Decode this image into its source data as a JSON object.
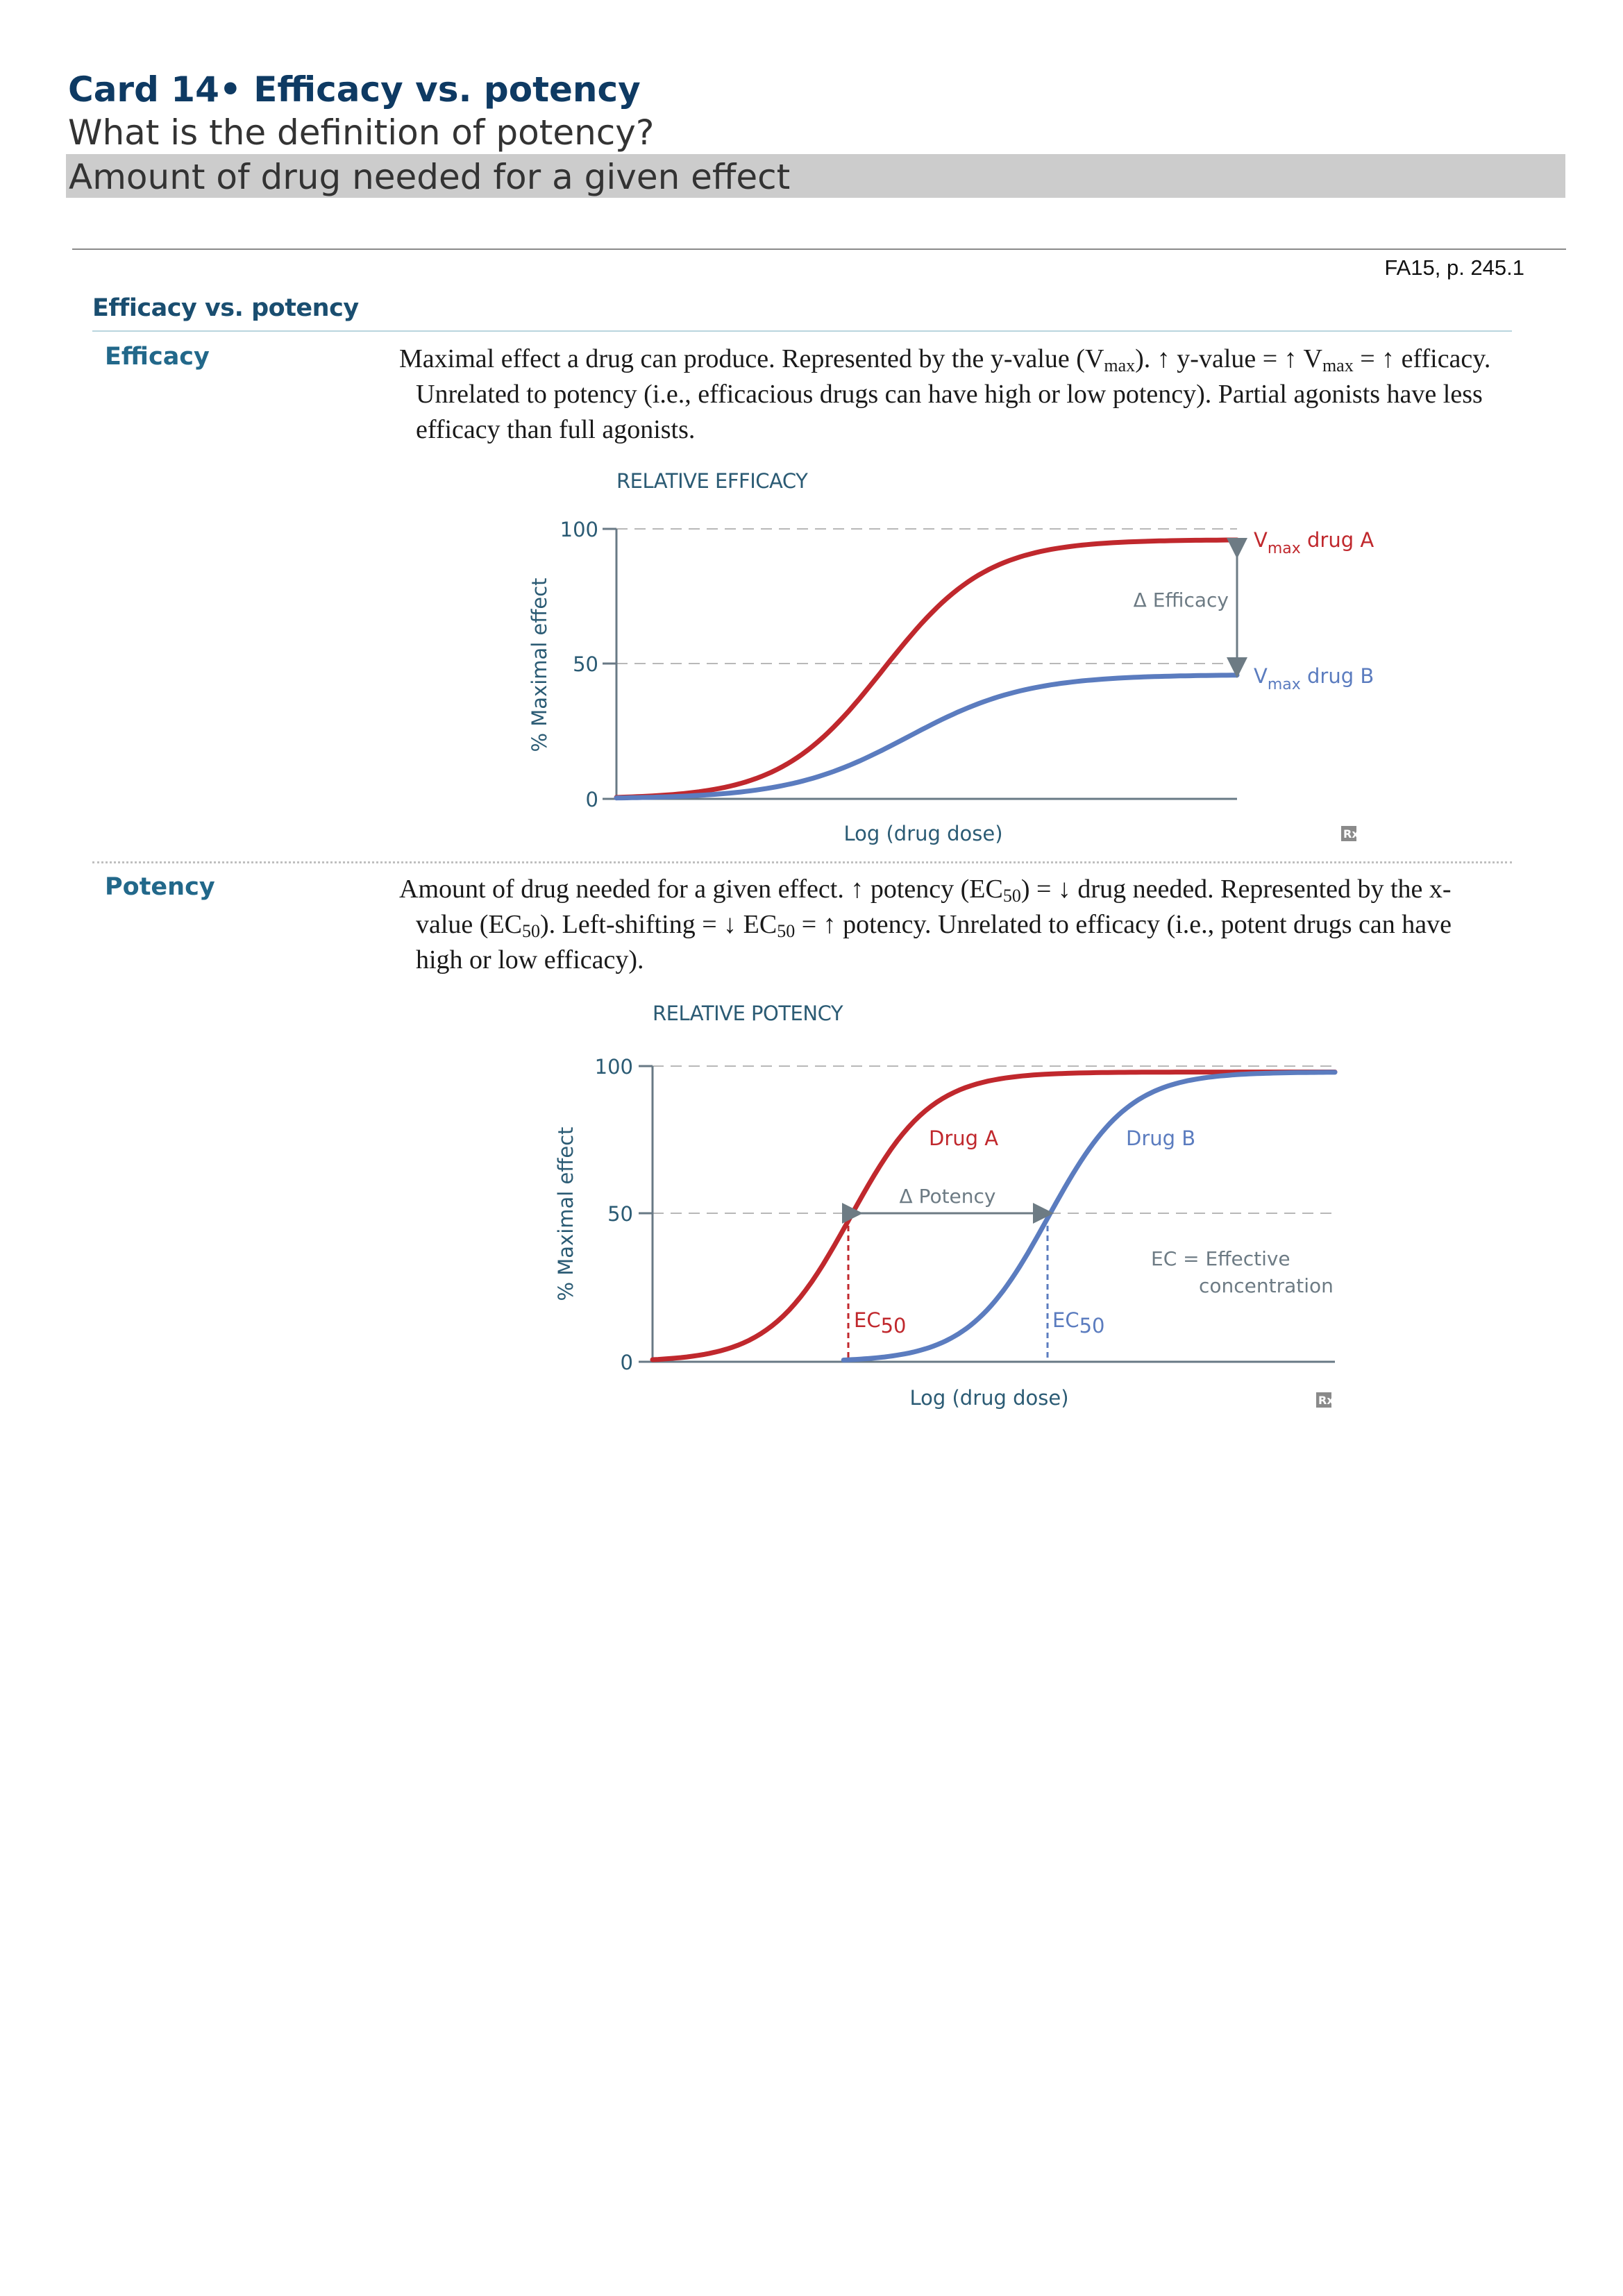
{
  "card": {
    "title": "Card 14• Efficacy vs. potency",
    "question": "What is the definition of potency?",
    "answer": "Amount of drug needed for a given effect"
  },
  "reference": "FA15, p. 245.1",
  "section": {
    "heading": "Efficacy vs. potency"
  },
  "efficacy": {
    "label": "Efficacy",
    "text": {
      "p1": "Maximal effect a drug can produce. Represented by the y-value (V",
      "sub1": "max",
      "p2": "). ↑ y-value = ↑ V",
      "sub2": "max",
      "p3": " = ↑ efficacy. Unrelated to potency (i.e., efficacious drugs can have high or low potency). Partial agonists have less efficacy than full agonists."
    }
  },
  "potency": {
    "label": "Potency",
    "text": {
      "p1": "Amount of drug needed for a given effect. ↑ potency (EC",
      "sub1": "50",
      "p2": ") = ↓ drug needed. Represented by the x-value (EC",
      "sub2": "50",
      "p3": "). Left-shifting = ↓ EC",
      "sub3": "50",
      "p4": " = ↑ potency. Unrelated to efficacy (i.e., potent drugs can have high or low efficacy)."
    }
  },
  "chart_data": [
    {
      "type": "line",
      "title": "RELATIVE EFFICACY",
      "xlabel": "Log (drug dose)",
      "ylabel": "% Maximal effect",
      "ylim": [
        0,
        100
      ],
      "yticks": [
        "0",
        "50",
        "100"
      ],
      "grid": "dashed at 50 and 100",
      "series": [
        {
          "name": "drug A",
          "label_main": "V",
          "label_sub": "max",
          "label_rest": " drug A",
          "vmax": 96,
          "ec50": 0.43,
          "slope": 12,
          "color": "#c0282d"
        },
        {
          "name": "drug B",
          "label_main": "V",
          "label_sub": "max",
          "label_rest": " drug B",
          "vmax": 46,
          "ec50": 0.47,
          "slope": 10.5,
          "color": "#5b7cbf"
        }
      ],
      "annotations": [
        "Δ Efficacy"
      ],
      "logo": "Rx"
    },
    {
      "type": "line",
      "title": "RELATIVE POTENCY",
      "xlabel": "Log (drug dose)",
      "ylabel": "% Maximal effect",
      "ylim": [
        0,
        100
      ],
      "yticks": [
        "0",
        "50",
        "100"
      ],
      "grid": "dashed at 50 and 100",
      "series": [
        {
          "name": "Drug A",
          "vmax": 98,
          "ec50": 0.29,
          "slope": 17,
          "start": 0.0,
          "color": "#c0282d"
        },
        {
          "name": "Drug B",
          "vmax": 98,
          "ec50": 0.58,
          "slope": 17,
          "start": 0.28,
          "color": "#5b7cbf"
        }
      ],
      "ec50_labels": [
        {
          "main": "EC",
          "sub": "50",
          "color": "#c0282d"
        },
        {
          "main": "EC",
          "sub": "50",
          "color": "#5b7cbf"
        }
      ],
      "annotations": [
        "Δ Potency",
        "EC = Effective",
        "concentration"
      ],
      "logo": "Rx"
    }
  ]
}
